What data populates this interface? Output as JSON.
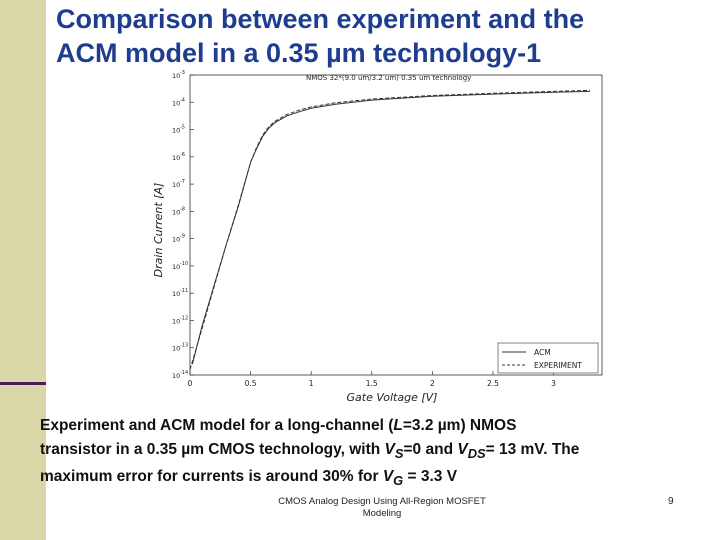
{
  "title": {
    "line1": "Comparison between experiment and the",
    "line2": "ACM model in a 0.35 µm technology-1"
  },
  "chart_data": {
    "type": "line",
    "title": "NMOS  32*(9.0 um/3.2 um)   0.35 um technology",
    "xlabel": "Gate Voltage [V]",
    "ylabel": "Drain Current [A]",
    "xlim": [
      0,
      3.4
    ],
    "ylim_exponent": [
      -14,
      -3
    ],
    "y_scale": "log",
    "x_ticks": [
      "0",
      "0.5",
      "1",
      "1.5",
      "2",
      "2.5",
      "3"
    ],
    "x_tick_values": [
      0,
      0.5,
      1,
      1.5,
      2,
      2.5,
      3
    ],
    "y_tick_bases": [
      "10",
      "10",
      "10",
      "10",
      "10",
      "10",
      "10",
      "10",
      "10",
      "10",
      "10",
      "10"
    ],
    "y_tick_exps": [
      "-3",
      "-4",
      "-5",
      "-6",
      "-7",
      "-8",
      "-9",
      "-10",
      "-11",
      "-12",
      "-13",
      "-14"
    ],
    "legend_position": "bottom-right",
    "series": [
      {
        "name": "ACM",
        "style": "solid",
        "x": [
          0.02,
          0.1,
          0.2,
          0.3,
          0.4,
          0.5,
          0.55,
          0.6,
          0.65,
          0.7,
          0.8,
          0.9,
          1.0,
          1.2,
          1.5,
          2.0,
          2.5,
          3.0,
          3.3
        ],
        "y_exp": [
          -13.6,
          -12.2,
          -10.7,
          -9.2,
          -7.8,
          -6.2,
          -5.7,
          -5.25,
          -4.95,
          -4.75,
          -4.5,
          -4.35,
          -4.22,
          -4.07,
          -3.92,
          -3.78,
          -3.7,
          -3.63,
          -3.6
        ]
      },
      {
        "name": "EXPERIMENT",
        "style": "dashed",
        "x": [
          0.0,
          0.1,
          0.2,
          0.3,
          0.4,
          0.5,
          0.55,
          0.6,
          0.65,
          0.7,
          0.8,
          0.9,
          1.0,
          1.2,
          1.5,
          2.0,
          2.5,
          3.0,
          3.3
        ],
        "y_exp": [
          -13.8,
          -12.3,
          -10.75,
          -9.2,
          -7.75,
          -6.2,
          -5.65,
          -5.2,
          -4.9,
          -4.7,
          -4.45,
          -4.29,
          -4.17,
          -4.02,
          -3.88,
          -3.75,
          -3.67,
          -3.6,
          -3.56
        ]
      }
    ]
  },
  "caption": {
    "l1_a": "Experiment and ACM model for a long-channel (",
    "l1_L": "L",
    "l1_b": "=3.2 µm) NMOS",
    "l2_a": "transistor in a 0.35 µm CMOS technology, with ",
    "l2_V1": "V",
    "l2_S": "S",
    "l2_b": "=0 and ",
    "l2_V2": "V",
    "l2_DS": "DS",
    "l2_c": "= 13 mV. The",
    "l3_a": "maximum error for currents is around 30% for ",
    "l3_V": "V",
    "l3_G": "G",
    "l3_b": " = 3.3 V"
  },
  "footer": {
    "line1": "CMOS Analog Design Using All-Region MOSFET",
    "line2": "Modeling",
    "page": "9"
  },
  "colors": {
    "title": "#1f3d8f",
    "sidebar": "#d9d7a8",
    "sidebar_line": "#4a1a5a"
  }
}
